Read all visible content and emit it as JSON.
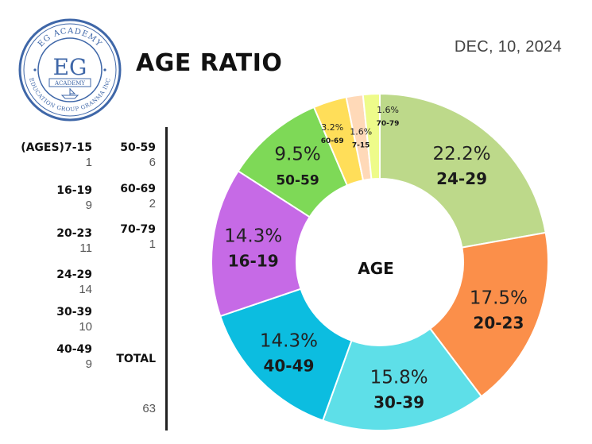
{
  "title": "AGE RATIO",
  "date": "DEC, 10, 2024",
  "logo": {
    "ring_top_text": "EG ACADEMY",
    "ring_bottom_text": "EDUCATION GROUP GRANMA INC",
    "monogram": "EG",
    "banner_text": "ACADEMY",
    "color": "#3f67a8"
  },
  "list_col1": [
    {
      "label": "(AGES)7-15",
      "value": "1"
    },
    {
      "label": "16-19",
      "value": "9"
    },
    {
      "label": "20-23",
      "value": "11"
    },
    {
      "label": "24-29",
      "value": "14"
    },
    {
      "label": "30-39",
      "value": "10"
    },
    {
      "label": "40-49",
      "value": "9"
    }
  ],
  "list_col2": [
    {
      "label": "50-59",
      "value": "6"
    },
    {
      "label": "60-69",
      "value": "2"
    },
    {
      "label": "70-79",
      "value": "1"
    }
  ],
  "total_label": "TOTAL",
  "total_value": "63",
  "chart_data": {
    "type": "pie",
    "donut": true,
    "center_label": "AGE",
    "slices": [
      {
        "category": "24-29",
        "value": 22.2,
        "label": "22.2%",
        "color": "#bdd98a"
      },
      {
        "category": "20-23",
        "value": 17.5,
        "label": "17.5%",
        "color": "#fb8f4a"
      },
      {
        "category": "30-39",
        "value": 15.8,
        "label": "15.8%",
        "color": "#5edfe8"
      },
      {
        "category": "40-49",
        "value": 14.3,
        "label": "14.3%",
        "color": "#0cbde0"
      },
      {
        "category": "16-19",
        "value": 14.3,
        "label": "14.3%",
        "color": "#c66ae6"
      },
      {
        "category": "50-59",
        "value": 9.5,
        "label": "9.5%",
        "color": "#7ed957"
      },
      {
        "category": "60-69",
        "value": 3.2,
        "label": "3.2%",
        "color": "#ffde59"
      },
      {
        "category": "7-15",
        "value": 1.6,
        "label": "1.6%",
        "color": "#ffd9b8"
      },
      {
        "category": "70-79",
        "value": 1.6,
        "label": "1.6%",
        "color": "#eefb8a"
      }
    ]
  }
}
